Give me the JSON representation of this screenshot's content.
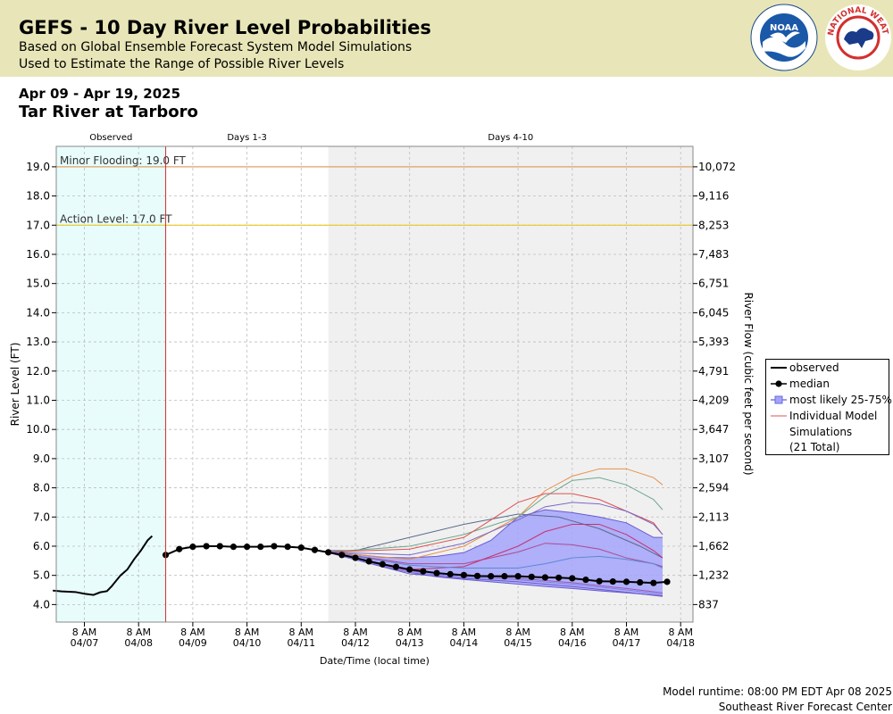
{
  "header": {
    "title": "GEFS - 10 Day River Level Probabilities",
    "subtitle1": "Based on Global Ensemble Forecast System Model Simulations",
    "subtitle2": "Used to Estimate the Range of Possible River Levels",
    "date_range": "Apr 09 - Apr 19, 2025",
    "location": "Tar River at Tarboro",
    "noaa_logo_text": "NOAA",
    "nws_logo_text": "NATIONAL WEATHER SERVICE"
  },
  "footer": {
    "runtime": "Model runtime: 08:00 PM EDT Apr 08 2025",
    "center": "Southeast River Forecast Center"
  },
  "chart_data": {
    "type": "line",
    "colors": {
      "observed_bg": "#e8fcfc",
      "days410_bg": "#f0f0f0",
      "band_fill": "#a3a3fb",
      "band_edge": "#6a5acd",
      "forecast_line": "#d03030",
      "minor_flood": "#e0a060",
      "action": "#e8c820",
      "header_bg": "#e8e6b8"
    },
    "sections": [
      "Observed",
      "Days 1-3",
      "Days 4-10"
    ],
    "forecast_start": "04/08 20:00",
    "days410_start": "04/11 20:00",
    "xlabel": "Date/Time (local time)",
    "ylabel": "River Level (FT)",
    "ylabel_right": "River Flow (cubic feet per second)",
    "ylim": [
      3.4,
      19.7
    ],
    "y_ticks": [
      4.0,
      5.0,
      6.0,
      7.0,
      8.0,
      9.0,
      10.0,
      11.0,
      12.0,
      13.0,
      14.0,
      15.0,
      16.0,
      17.0,
      18.0,
      19.0
    ],
    "y_tick_labels": [
      "4.0",
      "5.0",
      "6.0",
      "7.0",
      "8.0",
      "9.0",
      "10.0",
      "11.0",
      "12.0",
      "13.0",
      "14.0",
      "15.0",
      "16.0",
      "17.0",
      "18.0",
      "19.0"
    ],
    "right_ticks": [
      {
        "stage": 4.0,
        "label": "837"
      },
      {
        "stage": 5.0,
        "label": "1,232"
      },
      {
        "stage": 6.0,
        "label": "1,662"
      },
      {
        "stage": 7.0,
        "label": "2,113"
      },
      {
        "stage": 8.0,
        "label": "2,594"
      },
      {
        "stage": 9.0,
        "label": "3,107"
      },
      {
        "stage": 10.0,
        "label": "3,647"
      },
      {
        "stage": 11.0,
        "label": "4,209"
      },
      {
        "stage": 12.0,
        "label": "4,791"
      },
      {
        "stage": 13.0,
        "label": "5,393"
      },
      {
        "stage": 14.0,
        "label": "6,045"
      },
      {
        "stage": 15.0,
        "label": "6,751"
      },
      {
        "stage": 16.0,
        "label": "7,483"
      },
      {
        "stage": 17.0,
        "label": "8,253"
      },
      {
        "stage": 18.0,
        "label": "9,116"
      },
      {
        "stage": 19.0,
        "label": "10,072"
      }
    ],
    "x_tick_days": [
      7,
      8,
      9,
      10,
      11,
      12,
      13,
      14,
      15,
      16,
      17,
      18
    ],
    "x_tick_labels": [
      [
        "8 AM",
        "04/07"
      ],
      [
        "8 AM",
        "04/08"
      ],
      [
        "8 AM",
        "04/09"
      ],
      [
        "8 AM",
        "04/10"
      ],
      [
        "8 AM",
        "04/11"
      ],
      [
        "8 AM",
        "04/12"
      ],
      [
        "8 AM",
        "04/13"
      ],
      [
        "8 AM",
        "04/14"
      ],
      [
        "8 AM",
        "04/15"
      ],
      [
        "8 AM",
        "04/16"
      ],
      [
        "8 AM",
        "04/17"
      ],
      [
        "8 AM",
        "04/18"
      ]
    ],
    "thresholds": [
      {
        "name": "Minor Flooding",
        "label": "Minor Flooding: 19.0 FT",
        "value": 19.0
      },
      {
        "name": "Action Level",
        "label": "Action Level: 17.0 FT",
        "value": 17.0
      }
    ],
    "observed": {
      "x": [
        "04/06 18:00",
        "04/06 22:00",
        "04/07 04:00",
        "04/07 08:00",
        "04/07 12:00",
        "04/07 15:00",
        "04/07 18:00",
        "04/07 20:00",
        "04/08 00:00",
        "04/08 03:00",
        "04/08 06:00",
        "04/08 09:00",
        "04/08 12:00",
        "04/08 14:00"
      ],
      "y": [
        4.48,
        4.45,
        4.43,
        4.37,
        4.33,
        4.42,
        4.46,
        4.62,
        5.0,
        5.2,
        5.55,
        5.85,
        6.2,
        6.35
      ]
    },
    "median": {
      "x": [
        "04/08 20:00",
        "04/09 02:00",
        "04/09 08:00",
        "04/09 14:00",
        "04/09 20:00",
        "04/10 02:00",
        "04/10 08:00",
        "04/10 14:00",
        "04/10 20:00",
        "04/11 02:00",
        "04/11 08:00",
        "04/11 14:00",
        "04/11 20:00",
        "04/12 02:00",
        "04/12 08:00",
        "04/12 14:00",
        "04/12 20:00",
        "04/13 02:00",
        "04/13 08:00",
        "04/13 14:00",
        "04/13 20:00",
        "04/14 02:00",
        "04/14 08:00",
        "04/14 14:00",
        "04/14 20:00",
        "04/15 02:00",
        "04/15 08:00",
        "04/15 14:00",
        "04/15 20:00",
        "04/16 02:00",
        "04/16 08:00",
        "04/16 14:00",
        "04/16 20:00",
        "04/17 02:00",
        "04/17 08:00",
        "04/17 14:00",
        "04/17 20:00",
        "04/18 02:00"
      ],
      "y": [
        5.7,
        5.9,
        5.98,
        6.0,
        6.0,
        5.98,
        5.98,
        5.98,
        6.0,
        5.98,
        5.95,
        5.87,
        5.79,
        5.7,
        5.6,
        5.48,
        5.38,
        5.29,
        5.2,
        5.14,
        5.08,
        5.04,
        5.01,
        4.98,
        4.97,
        4.97,
        4.97,
        4.95,
        4.93,
        4.92,
        4.9,
        4.85,
        4.8,
        4.79,
        4.78,
        4.76,
        4.74,
        4.78
      ]
    },
    "band_25_75": {
      "x": [
        "04/11 20:00",
        "04/12 08:00",
        "04/12 20:00",
        "04/13 08:00",
        "04/13 20:00",
        "04/14 08:00",
        "04/14 20:00",
        "04/15 08:00",
        "04/15 20:00",
        "04/16 08:00",
        "04/16 20:00",
        "04/17 08:00",
        "04/17 20:00",
        "04/18 00:00"
      ],
      "upper": [
        5.82,
        5.72,
        5.62,
        5.6,
        5.65,
        5.78,
        6.2,
        7.0,
        7.25,
        7.15,
        7.0,
        6.8,
        6.3,
        6.3
      ],
      "lower": [
        5.78,
        5.55,
        5.3,
        5.1,
        4.95,
        4.86,
        4.78,
        4.7,
        4.62,
        4.55,
        4.47,
        4.4,
        4.33,
        4.3
      ]
    },
    "simulations_total": 21,
    "simulations": [
      {
        "color": "#5a6a8a",
        "x": [
          "04/11 20:00",
          "04/12 08:00",
          "04/13 08:00",
          "04/14 08:00",
          "04/15 08:00",
          "04/16 02:00",
          "04/16 20:00",
          "04/17 14:00",
          "04/18 00:00"
        ],
        "y": [
          5.85,
          5.85,
          6.3,
          6.75,
          7.1,
          7.0,
          6.6,
          6.0,
          5.6
        ]
      },
      {
        "color": "#e8904a",
        "x": [
          "04/11 20:00",
          "04/13 08:00",
          "04/14 08:00",
          "04/15 08:00",
          "04/15 20:00",
          "04/16 08:00",
          "04/16 20:00",
          "04/17 08:00",
          "04/17 20:00",
          "04/18 00:00"
        ],
        "y": [
          5.8,
          5.55,
          6.0,
          7.0,
          7.9,
          8.4,
          8.65,
          8.65,
          8.35,
          8.1
        ]
      },
      {
        "color": "#6fa890",
        "x": [
          "04/11 20:00",
          "04/13 08:00",
          "04/14 08:00",
          "04/15 08:00",
          "04/15 20:00",
          "04/16 08:00",
          "04/16 20:00",
          "04/17 08:00",
          "04/17 20:00",
          "04/18 00:00"
        ],
        "y": [
          5.8,
          6.0,
          6.4,
          7.0,
          7.7,
          8.25,
          8.35,
          8.1,
          7.6,
          7.25
        ]
      },
      {
        "color": "#e05050",
        "x": [
          "04/11 20:00",
          "04/13 08:00",
          "04/14 08:00",
          "04/14 20:00",
          "04/15 08:00",
          "04/15 20:00",
          "04/16 08:00",
          "04/16 20:00",
          "04/17 08:00",
          "04/17 20:00",
          "04/18 00:00"
        ],
        "y": [
          5.8,
          5.9,
          6.3,
          6.9,
          7.5,
          7.8,
          7.8,
          7.6,
          7.2,
          6.8,
          6.4
        ]
      },
      {
        "color": "#7b68c8",
        "x": [
          "04/11 20:00",
          "04/13 08:00",
          "04/14 08:00",
          "04/15 08:00",
          "04/15 20:00",
          "04/16 08:00",
          "04/16 20:00",
          "04/17 08:00",
          "04/17 20:00",
          "04/18 00:00"
        ],
        "y": [
          5.8,
          5.7,
          6.1,
          6.9,
          7.35,
          7.5,
          7.45,
          7.2,
          6.75,
          6.4
        ]
      },
      {
        "color": "#b04890",
        "x": [
          "04/11 20:00",
          "04/13 08:00",
          "04/14 08:00",
          "04/15 08:00",
          "04/15 20:00",
          "04/16 08:00",
          "04/16 20:00",
          "04/17 08:00",
          "04/17 20:00",
          "04/18 00:00"
        ],
        "y": [
          5.8,
          5.4,
          5.4,
          5.8,
          6.1,
          6.05,
          5.9,
          5.6,
          5.4,
          5.3
        ]
      },
      {
        "color": "#c83070",
        "x": [
          "04/11 20:00",
          "04/13 08:00",
          "04/14 08:00",
          "04/15 08:00",
          "04/15 20:00",
          "04/16 08:00",
          "04/16 20:00",
          "04/17 08:00",
          "04/17 20:00",
          "04/18 00:00"
        ],
        "y": [
          5.8,
          5.2,
          5.3,
          6.0,
          6.5,
          6.75,
          6.75,
          6.4,
          5.85,
          5.6
        ]
      },
      {
        "color": "#5a8ad0",
        "x": [
          "04/11 20:00",
          "04/13 08:00",
          "04/14 08:00",
          "04/15 08:00",
          "04/15 20:00",
          "04/16 08:00",
          "04/16 20:00",
          "04/17 08:00",
          "04/17 20:00",
          "04/18 00:00"
        ],
        "y": [
          5.8,
          5.35,
          5.25,
          5.25,
          5.4,
          5.6,
          5.65,
          5.55,
          5.4,
          5.25
        ]
      },
      {
        "color": "#9b59b6",
        "x": [
          "04/11 20:00",
          "04/13 08:00",
          "04/14 08:00",
          "04/15 08:00",
          "04/16 08:00",
          "04/17 08:00",
          "04/18 00:00"
        ],
        "y": [
          5.78,
          5.15,
          5.0,
          4.9,
          4.75,
          4.55,
          4.4
        ]
      },
      {
        "color": "#6a5acd",
        "x": [
          "04/11 20:00",
          "04/13 08:00",
          "04/14 08:00",
          "04/15 08:00",
          "04/16 08:00",
          "04/17 08:00",
          "04/18 00:00"
        ],
        "y": [
          5.78,
          5.05,
          4.9,
          4.78,
          4.62,
          4.42,
          4.28
        ]
      },
      {
        "color": "#8080e0",
        "x": [
          "04/11 20:00",
          "04/13 08:00",
          "04/14 08:00",
          "04/15 08:00",
          "04/16 08:00",
          "04/17 08:00",
          "04/18 00:00"
        ],
        "y": [
          5.78,
          5.1,
          4.95,
          4.85,
          4.7,
          4.5,
          4.35
        ]
      }
    ]
  }
}
